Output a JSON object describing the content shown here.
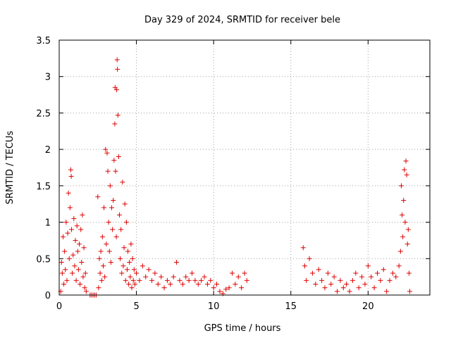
{
  "chart_data": {
    "type": "scatter",
    "title": "Day 329 of 2024, SRMTID for receiver bele",
    "xlabel": "GPS time / hours",
    "ylabel": "SRMTID / TECUs",
    "xlim": [
      0,
      24
    ],
    "ylim": [
      0,
      3.5
    ],
    "xticks": [
      0,
      5,
      10,
      15,
      20
    ],
    "xtick_labels": [
      "0",
      "5",
      "10",
      "15",
      "20"
    ],
    "yticks": [
      0,
      0.5,
      1,
      1.5,
      2,
      2.5,
      3,
      3.5
    ],
    "ytick_labels": [
      "0",
      "0.5",
      "1",
      "1.5",
      "2",
      "2.5",
      "3",
      "3.5"
    ],
    "grid": true,
    "marker": "+",
    "series": [
      {
        "name": "SRMTID",
        "color": "#e00000",
        "points": [
          [
            0.1,
            0.05
          ],
          [
            0.15,
            0.45
          ],
          [
            0.2,
            0.3
          ],
          [
            0.25,
            0.8
          ],
          [
            0.3,
            0.15
          ],
          [
            0.35,
            0.6
          ],
          [
            0.4,
            0.35
          ],
          [
            0.45,
            1.0
          ],
          [
            0.5,
            0.2
          ],
          [
            0.55,
            0.85
          ],
          [
            0.6,
            1.4
          ],
          [
            0.65,
            0.5
          ],
          [
            0.7,
            1.2
          ],
          [
            0.75,
            1.72
          ],
          [
            0.78,
            1.63
          ],
          [
            0.8,
            0.9
          ],
          [
            0.85,
            0.3
          ],
          [
            0.9,
            0.55
          ],
          [
            0.95,
            1.05
          ],
          [
            1.0,
            0.4
          ],
          [
            1.05,
            0.75
          ],
          [
            1.1,
            0.2
          ],
          [
            1.15,
            0.95
          ],
          [
            1.2,
            0.6
          ],
          [
            1.25,
            0.35
          ],
          [
            1.3,
            0.7
          ],
          [
            1.35,
            0.15
          ],
          [
            1.4,
            0.9
          ],
          [
            1.45,
            0.45
          ],
          [
            1.5,
            1.1
          ],
          [
            1.55,
            0.25
          ],
          [
            1.6,
            0.65
          ],
          [
            1.65,
            0.1
          ],
          [
            1.7,
            0.3
          ],
          [
            1.75,
            0.05
          ],
          [
            2.0,
            0.0
          ],
          [
            2.1,
            0.0
          ],
          [
            2.2,
            0.0
          ],
          [
            2.3,
            0.0
          ],
          [
            2.4,
            0.0
          ],
          [
            2.5,
            1.35
          ],
          [
            2.55,
            0.1
          ],
          [
            2.6,
            0.5
          ],
          [
            2.65,
            0.3
          ],
          [
            2.7,
            0.6
          ],
          [
            2.75,
            0.2
          ],
          [
            2.8,
            0.8
          ],
          [
            2.85,
            0.4
          ],
          [
            2.9,
            1.2
          ],
          [
            2.95,
            0.25
          ],
          [
            3.0,
            2.0
          ],
          [
            3.05,
            0.7
          ],
          [
            3.1,
            1.95
          ],
          [
            3.15,
            1.7
          ],
          [
            3.2,
            1.0
          ],
          [
            3.25,
            0.6
          ],
          [
            3.3,
            1.5
          ],
          [
            3.35,
            0.45
          ],
          [
            3.4,
            1.2
          ],
          [
            3.45,
            0.9
          ],
          [
            3.5,
            1.3
          ],
          [
            3.55,
            1.85
          ],
          [
            3.6,
            2.35
          ],
          [
            3.62,
            2.85
          ],
          [
            3.65,
            1.7
          ],
          [
            3.7,
            0.8
          ],
          [
            3.72,
            2.82
          ],
          [
            3.75,
            3.23
          ],
          [
            3.77,
            3.1
          ],
          [
            3.8,
            2.47
          ],
          [
            3.85,
            1.9
          ],
          [
            3.9,
            1.1
          ],
          [
            3.95,
            0.5
          ],
          [
            4.0,
            0.9
          ],
          [
            4.05,
            0.3
          ],
          [
            4.1,
            1.55
          ],
          [
            4.15,
            0.4
          ],
          [
            4.2,
            0.65
          ],
          [
            4.25,
            1.25
          ],
          [
            4.3,
            0.2
          ],
          [
            4.35,
            1.0
          ],
          [
            4.4,
            0.35
          ],
          [
            4.45,
            0.6
          ],
          [
            4.5,
            0.15
          ],
          [
            4.55,
            0.45
          ],
          [
            4.6,
            0.25
          ],
          [
            4.65,
            0.7
          ],
          [
            4.7,
            0.1
          ],
          [
            4.75,
            0.5
          ],
          [
            4.8,
            0.2
          ],
          [
            4.85,
            0.35
          ],
          [
            4.9,
            0.15
          ],
          [
            5.0,
            0.3
          ],
          [
            5.2,
            0.2
          ],
          [
            5.4,
            0.4
          ],
          [
            5.6,
            0.25
          ],
          [
            5.8,
            0.35
          ],
          [
            6.0,
            0.2
          ],
          [
            6.2,
            0.3
          ],
          [
            6.4,
            0.15
          ],
          [
            6.6,
            0.25
          ],
          [
            6.8,
            0.1
          ],
          [
            7.0,
            0.2
          ],
          [
            7.2,
            0.15
          ],
          [
            7.4,
            0.25
          ],
          [
            7.6,
            0.45
          ],
          [
            7.8,
            0.2
          ],
          [
            8.0,
            0.15
          ],
          [
            8.2,
            0.25
          ],
          [
            8.4,
            0.2
          ],
          [
            8.6,
            0.3
          ],
          [
            8.8,
            0.2
          ],
          [
            9.0,
            0.15
          ],
          [
            9.2,
            0.2
          ],
          [
            9.4,
            0.25
          ],
          [
            9.6,
            0.15
          ],
          [
            9.8,
            0.2
          ],
          [
            10.0,
            0.1
          ],
          [
            10.2,
            0.15
          ],
          [
            10.4,
            0.05
          ],
          [
            10.6,
            0.02
          ],
          [
            10.8,
            0.08
          ],
          [
            11.0,
            0.1
          ],
          [
            11.2,
            0.3
          ],
          [
            11.4,
            0.15
          ],
          [
            11.6,
            0.25
          ],
          [
            11.8,
            0.1
          ],
          [
            12.0,
            0.3
          ],
          [
            12.15,
            0.2
          ],
          [
            15.8,
            0.65
          ],
          [
            15.9,
            0.4
          ],
          [
            16.0,
            0.2
          ],
          [
            16.2,
            0.5
          ],
          [
            16.4,
            0.3
          ],
          [
            16.6,
            0.15
          ],
          [
            16.8,
            0.35
          ],
          [
            17.0,
            0.2
          ],
          [
            17.2,
            0.1
          ],
          [
            17.4,
            0.3
          ],
          [
            17.6,
            0.15
          ],
          [
            17.8,
            0.25
          ],
          [
            18.0,
            0.05
          ],
          [
            18.2,
            0.2
          ],
          [
            18.4,
            0.1
          ],
          [
            18.6,
            0.15
          ],
          [
            18.8,
            0.05
          ],
          [
            19.0,
            0.2
          ],
          [
            19.2,
            0.3
          ],
          [
            19.4,
            0.1
          ],
          [
            19.6,
            0.25
          ],
          [
            19.8,
            0.15
          ],
          [
            20.0,
            0.4
          ],
          [
            20.2,
            0.25
          ],
          [
            20.4,
            0.1
          ],
          [
            20.6,
            0.3
          ],
          [
            20.8,
            0.2
          ],
          [
            21.0,
            0.35
          ],
          [
            21.2,
            0.05
          ],
          [
            21.4,
            0.2
          ],
          [
            21.6,
            0.3
          ],
          [
            21.8,
            0.25
          ],
          [
            22.0,
            0.4
          ],
          [
            22.1,
            0.6
          ],
          [
            22.15,
            1.5
          ],
          [
            22.2,
            1.1
          ],
          [
            22.25,
            0.8
          ],
          [
            22.3,
            1.3
          ],
          [
            22.35,
            1.72
          ],
          [
            22.4,
            1.0
          ],
          [
            22.45,
            1.84
          ],
          [
            22.5,
            1.65
          ],
          [
            22.55,
            0.7
          ],
          [
            22.6,
            0.9
          ],
          [
            22.65,
            0.3
          ],
          [
            22.7,
            0.05
          ]
        ]
      }
    ]
  }
}
